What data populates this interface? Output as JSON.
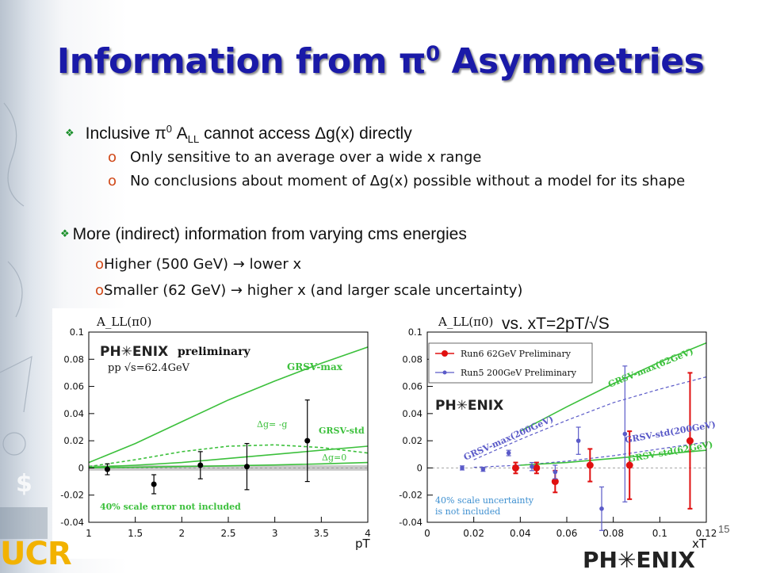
{
  "title": {
    "main": "Information from π",
    "sup": "0",
    "tail": " Asymmetries"
  },
  "bullet1": {
    "pre": "Inclusive π",
    "sup": "0",
    "mid": " A",
    "sub": "LL",
    "post": " cannot access Δg(x) directly"
  },
  "bullet1_subs": [
    {
      "marker": "o",
      "text": "Only sensitive to an average over a wide x range"
    },
    {
      "marker": "o",
      "text": "No conclusions about moment of Δg(x) possible without a model for its shape"
    }
  ],
  "bullet2": "More (indirect) information from varying cms energies",
  "bullet2_subs": [
    {
      "marker": "o",
      "text": "Higher (500 GeV) → lower x"
    },
    {
      "marker": "o",
      "text": "Smaller (62 GeV) → higher x (and larger scale uncertainty)"
    }
  ],
  "page_number": "15",
  "footer": {
    "ucr_main": "UCR",
    "phenix_foot": "PH✳ENIX"
  },
  "colors": {
    "title": "#1a1aa8",
    "green": "#3cc03c",
    "red": "#e01010",
    "blue": "#5a5ac8"
  },
  "chart_data": [
    {
      "type": "scatter",
      "ylabel": "A_LL(π0)",
      "xlabel": "pT",
      "logo": "PH✳ENIX",
      "label_preliminary": "preliminary",
      "label_energy": "pp √s=62.4GeV",
      "xlim": [
        1,
        4
      ],
      "ylim": [
        -0.04,
        0.1
      ],
      "xticks": [
        "1",
        "1.5",
        "2",
        "2.5",
        "3",
        "3.5",
        "4"
      ],
      "yticks": [
        "-0.04",
        "-0.02",
        "0",
        "0.02",
        "0.04",
        "0.06",
        "0.08",
        "0.1"
      ],
      "points": [
        {
          "x": 1.2,
          "y": -0.001,
          "err": 0.004
        },
        {
          "x": 1.7,
          "y": -0.012,
          "err": 0.007
        },
        {
          "x": 2.2,
          "y": 0.002,
          "err": 0.01
        },
        {
          "x": 2.7,
          "y": 0.001,
          "err": 0.017
        },
        {
          "x": 3.35,
          "y": 0.02,
          "err": 0.03
        }
      ],
      "curves": [
        {
          "name": "GRSV-max",
          "dash": false,
          "x": [
            1,
            1.5,
            2,
            2.5,
            3,
            3.5,
            4
          ],
          "y": [
            0.004,
            0.018,
            0.034,
            0.05,
            0.064,
            0.077,
            0.089
          ]
        },
        {
          "name": "Δg= -g",
          "dash": true,
          "x": [
            1,
            1.5,
            2,
            2.5,
            3,
            3.5,
            4
          ],
          "y": [
            0.001,
            0.006,
            0.012,
            0.016,
            0.017,
            0.015,
            0.011
          ]
        },
        {
          "name": "GRSV-std",
          "dash": false,
          "x": [
            1,
            1.5,
            2,
            2.5,
            3,
            3.5,
            4
          ],
          "y": [
            0.0005,
            0.002,
            0.004,
            0.007,
            0.01,
            0.013,
            0.016
          ]
        },
        {
          "name": "Δg=0",
          "dash": false,
          "x": [
            1,
            1.5,
            2,
            2.5,
            3,
            3.5,
            4
          ],
          "y": [
            0.0001,
            0.0005,
            0.001,
            0.0016,
            0.0022,
            0.003,
            0.004
          ]
        }
      ],
      "scale_note": "40% scale error not included"
    },
    {
      "type": "scatter",
      "ylabel": "A_LL(π0)",
      "xlabel": "xT",
      "header_label": "vs. xT=2pT/√S",
      "logo": "PH✳ENIX",
      "xlim": [
        0,
        0.12
      ],
      "ylim": [
        -0.04,
        0.1
      ],
      "xticks": [
        "0",
        "0.02",
        "0.04",
        "0.06",
        "0.08",
        "0.1",
        "0.12"
      ],
      "yticks": [
        "-0.04",
        "-0.02",
        "0",
        "0.02",
        "0.04",
        "0.06",
        "0.08",
        "0.1"
      ],
      "series": [
        {
          "name": "Run6 62GeV Preliminary",
          "color": "#e01010",
          "points": [
            {
              "x": 0.038,
              "y": 0.0,
              "err": 0.004
            },
            {
              "x": 0.047,
              "y": 0.0,
              "err": 0.004
            },
            {
              "x": 0.055,
              "y": -0.01,
              "err": 0.008
            },
            {
              "x": 0.07,
              "y": 0.002,
              "err": 0.012
            },
            {
              "x": 0.087,
              "y": 0.002,
              "err": 0.025
            },
            {
              "x": 0.113,
              "y": 0.02,
              "err": 0.05
            }
          ]
        },
        {
          "name": "Run5 200GeV Preliminary",
          "color": "#5a5ac8",
          "points": [
            {
              "x": 0.015,
              "y": 0.0,
              "err": 0.0015
            },
            {
              "x": 0.024,
              "y": -0.001,
              "err": 0.0015
            },
            {
              "x": 0.035,
              "y": 0.011,
              "err": 0.002
            },
            {
              "x": 0.045,
              "y": 0.001,
              "err": 0.003
            },
            {
              "x": 0.055,
              "y": -0.003,
              "err": 0.005
            },
            {
              "x": 0.065,
              "y": 0.02,
              "err": 0.01
            },
            {
              "x": 0.075,
              "y": -0.03,
              "err": 0.016
            },
            {
              "x": 0.085,
              "y": 0.025,
              "err": 0.05
            }
          ]
        }
      ],
      "curves": [
        {
          "name": "GRSV-max(62GeV)",
          "color": "#3cc03c",
          "dash": false,
          "x": [
            0.04,
            0.06,
            0.08,
            0.1,
            0.12
          ],
          "y": [
            0.027,
            0.045,
            0.062,
            0.078,
            0.092
          ]
        },
        {
          "name": "GRSV-max(200GeV)",
          "color": "#5a5ac8",
          "dash": true,
          "x": [
            0.02,
            0.04,
            0.06,
            0.08,
            0.1,
            0.12
          ],
          "y": [
            0.006,
            0.021,
            0.035,
            0.048,
            0.058,
            0.067
          ]
        },
        {
          "name": "GRSV-std(200GeV)",
          "color": "#5a5ac8",
          "dash": true,
          "x": [
            0.02,
            0.04,
            0.06,
            0.08,
            0.1,
            0.12
          ],
          "y": [
            0.0005,
            0.002,
            0.005,
            0.009,
            0.014,
            0.019
          ]
        },
        {
          "name": "GRSV-std(62GeV)",
          "color": "#3cc03c",
          "dash": false,
          "x": [
            0.04,
            0.06,
            0.08,
            0.1,
            0.12
          ],
          "y": [
            0.002,
            0.004,
            0.007,
            0.01,
            0.013
          ]
        }
      ],
      "scale_note_1": "40% scale uncertainty",
      "scale_note_2": "is not included"
    }
  ]
}
